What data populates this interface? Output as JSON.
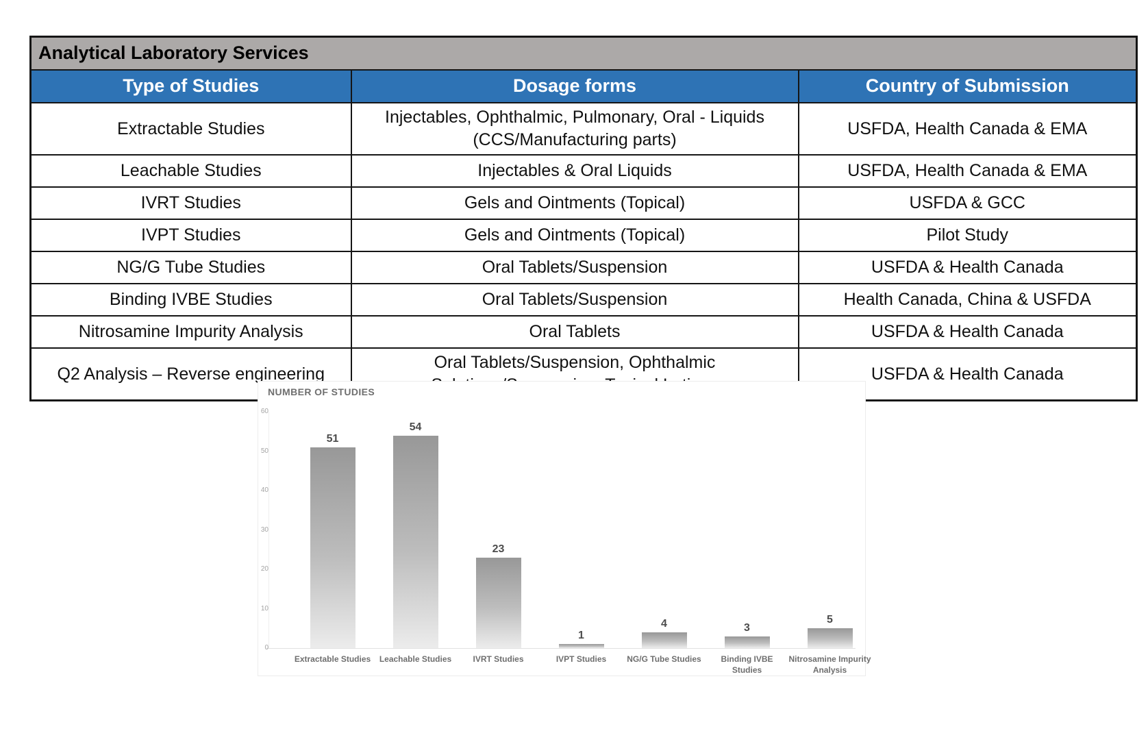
{
  "page": {
    "background": "#ffffff"
  },
  "table": {
    "title": "Analytical Laboratory Services",
    "title_bg": "#ACA9A8",
    "header_bg": "#2E73B5",
    "header_text_color": "#ffffff",
    "border_color": "#151515",
    "headers": [
      "Type of Studies",
      "Dosage forms",
      "Country of Submission"
    ],
    "rows": [
      [
        "Extractable Studies",
        "Injectables, Ophthalmic, Pulmonary, Oral - Liquids (CCS/Manufacturing parts)",
        "USFDA, Health Canada & EMA"
      ],
      [
        "Leachable Studies",
        "Injectables & Oral Liquids",
        "USFDA, Health Canada & EMA"
      ],
      [
        "IVRT Studies",
        "Gels and Ointments (Topical)",
        "USFDA & GCC"
      ],
      [
        "IVPT Studies",
        "Gels and Ointments (Topical)",
        "Pilot Study"
      ],
      [
        "NG/G Tube Studies",
        "Oral Tablets/Suspension",
        "USFDA & Health Canada"
      ],
      [
        "Binding IVBE Studies",
        "Oral Tablets/Suspension",
        "Health Canada, China & USFDA"
      ],
      [
        "Nitrosamine Impurity Analysis",
        "Oral Tablets",
        "USFDA & Health Canada"
      ],
      [
        "Q2 Analysis – Reverse engineering",
        "Oral Tablets/Suspension, Ophthalmic Solutions/Suspension, Topical Lotions",
        "USFDA & Health Canada"
      ]
    ]
  },
  "chart_data": {
    "type": "bar",
    "title": "NUMBER OF STUDIES",
    "categories": [
      "Extractable Studies",
      "Leachable Studies",
      "IVRT Studies",
      "IVPT Studies",
      "NG/G Tube Studies",
      "Binding IVBE Studies",
      "Nitrosamine Impurity Analysis"
    ],
    "values": [
      51,
      54,
      23,
      1,
      4,
      3,
      5
    ],
    "xlabel": "",
    "ylabel": "",
    "ylim": [
      0,
      60
    ],
    "yticks": [
      0,
      10,
      20,
      30,
      40,
      50,
      60
    ],
    "grid": false,
    "legend": false,
    "bar_color_top": "#989898",
    "bar_color_bottom": "#ececec",
    "value_label_color": "#4c4c4c",
    "tick_label_color": "#a3a3a3",
    "category_label_color": "#6e6e6e",
    "title_color": "#6f6f6f"
  }
}
